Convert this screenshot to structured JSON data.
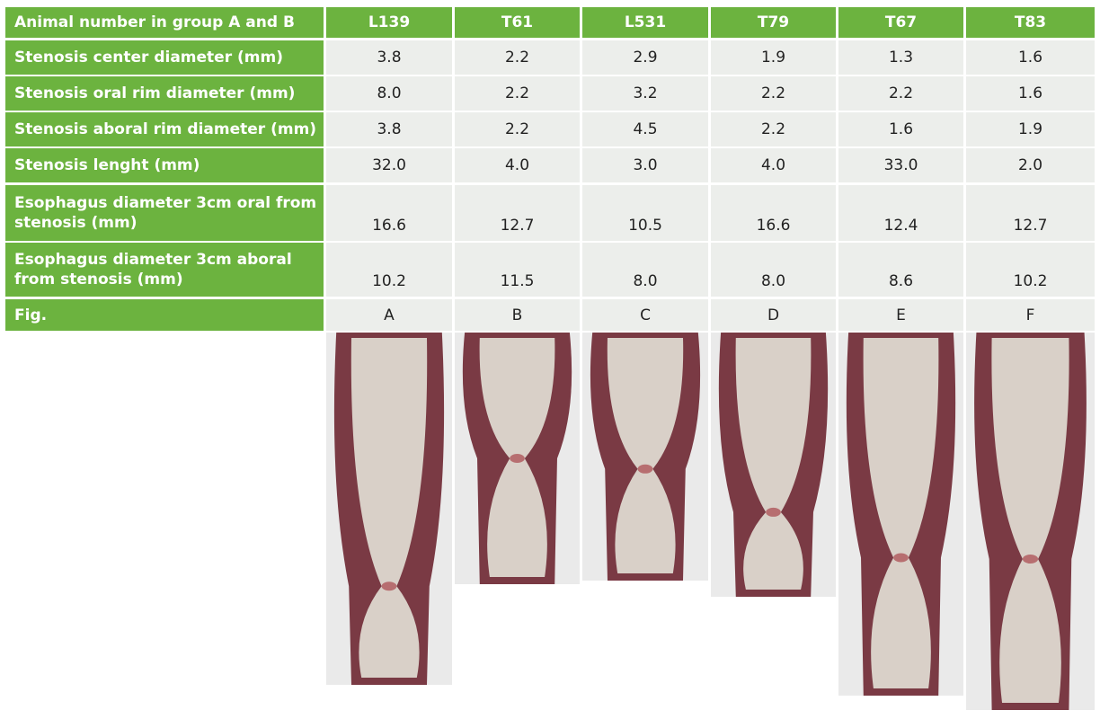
{
  "table": {
    "header": [
      "Animal number in group A and B",
      "L139",
      "T61",
      "L531",
      "T79",
      "T67",
      "T83"
    ],
    "rows": [
      [
        "Stenosis center diameter (mm)",
        "3.8",
        "2.2",
        "2.9",
        "1.9",
        "1.3",
        "1.6"
      ],
      [
        "Stenosis oral rim diameter (mm)",
        "8.0",
        "2.2",
        "3.2",
        "2.2",
        "2.2",
        "1.6"
      ],
      [
        "Stenosis aboral rim diameter (mm)",
        "3.8",
        "2.2",
        "4.5",
        "2.2",
        "1.6",
        "1.9"
      ],
      [
        "Stenosis lenght (mm)",
        "32.0",
        "4.0",
        "3.0",
        "4.0",
        "33.0",
        "2.0"
      ],
      [
        "Esophagus diameter 3cm oral from stenosis (mm)",
        "16.6",
        "12.7",
        "10.5",
        "16.6",
        "12.4",
        "12.7"
      ],
      [
        "Esophagus diameter 3cm aboral from stenosis (mm)",
        "10.2",
        "11.5",
        "8.0",
        "8.0",
        "8.6",
        "10.2"
      ],
      [
        "Fig.",
        "A",
        "B",
        "C",
        "D",
        "E",
        "F"
      ]
    ]
  }
}
